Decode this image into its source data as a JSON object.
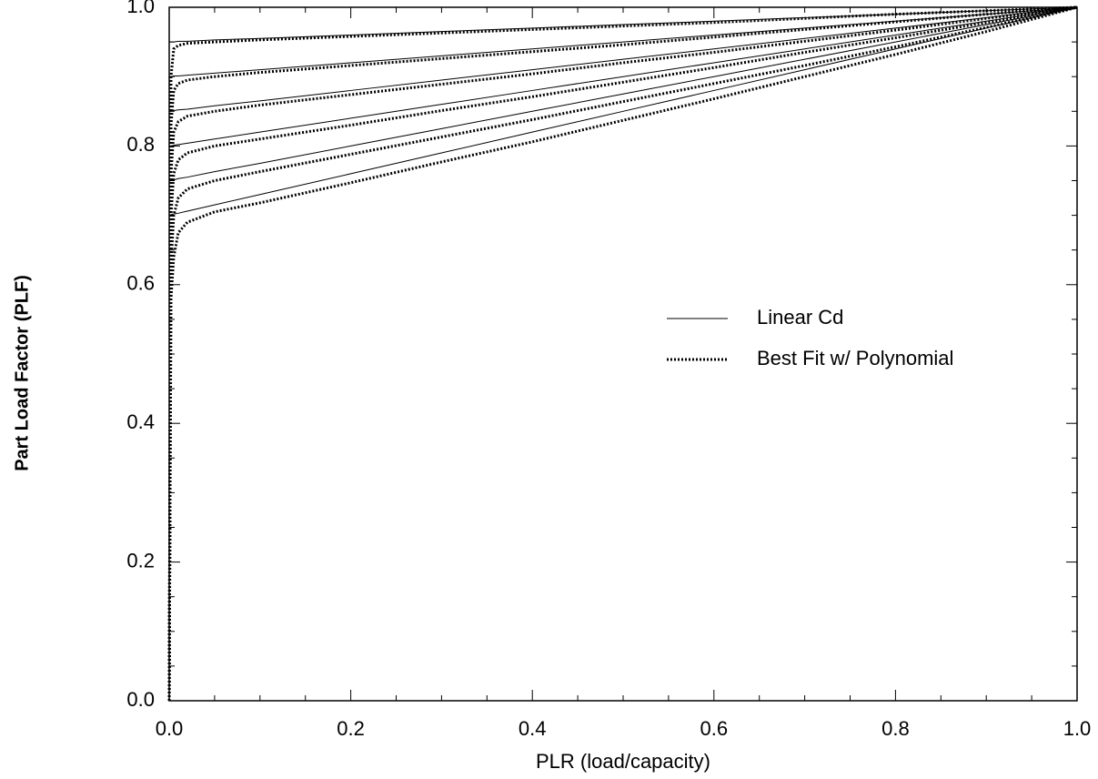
{
  "chart_data": {
    "type": "line",
    "xlabel": "PLR (load/capacity)",
    "ylabel": "Part Load Factor  (PLF)",
    "x": [
      0,
      0.002,
      0.005,
      0.01,
      0.02,
      0.05,
      0.1,
      0.2,
      0.3,
      0.4,
      0.5,
      0.6,
      0.7,
      0.8,
      0.9,
      1.0
    ],
    "xlim": [
      0,
      1.0
    ],
    "ylim": [
      0,
      1.0
    ],
    "xticks": [
      {
        "value": 0,
        "label": "0.0"
      },
      0.2,
      0.4,
      0.6,
      0.8,
      {
        "value": 1.0,
        "label": "1.0"
      }
    ],
    "yticks": [
      {
        "value": 0,
        "label": "0.0"
      },
      0.2,
      0.4,
      0.6,
      0.8,
      {
        "value": 1.0,
        "label": "1.0"
      }
    ],
    "xminorticks": [
      0.05,
      0.1,
      0.15,
      0.25,
      0.3,
      0.35,
      0.45,
      0.5,
      0.55,
      0.65,
      0.7,
      0.75,
      0.85,
      0.9,
      0.95
    ],
    "yminorticks": [
      0.05,
      0.1,
      0.15,
      0.25,
      0.3,
      0.35,
      0.45,
      0.5,
      0.55,
      0.65,
      0.7,
      0.75,
      0.85,
      0.9,
      0.95
    ],
    "grid": false,
    "series": [
      {
        "name": "Linear Cd",
        "color": "#000000",
        "style": "solid",
        "curves": [
          [
            0.95,
            0.95,
            0.95,
            0.951,
            0.951,
            0.953,
            0.955,
            0.96,
            0.965,
            0.97,
            0.975,
            0.98,
            0.985,
            0.99,
            0.995,
            1.0
          ],
          [
            0.9,
            0.9,
            0.901,
            0.901,
            0.902,
            0.905,
            0.91,
            0.92,
            0.93,
            0.94,
            0.95,
            0.96,
            0.97,
            0.98,
            0.99,
            1.0
          ],
          [
            0.85,
            0.85,
            0.851,
            0.852,
            0.853,
            0.858,
            0.865,
            0.88,
            0.895,
            0.91,
            0.925,
            0.94,
            0.955,
            0.97,
            0.985,
            1.0
          ],
          [
            0.8,
            0.8,
            0.801,
            0.802,
            0.804,
            0.81,
            0.82,
            0.84,
            0.86,
            0.88,
            0.9,
            0.92,
            0.94,
            0.96,
            0.98,
            1.0
          ],
          [
            0.75,
            0.751,
            0.751,
            0.753,
            0.755,
            0.763,
            0.775,
            0.8,
            0.825,
            0.85,
            0.875,
            0.9,
            0.925,
            0.95,
            0.975,
            1.0
          ],
          [
            0.7,
            0.701,
            0.702,
            0.703,
            0.706,
            0.715,
            0.73,
            0.76,
            0.79,
            0.82,
            0.85,
            0.88,
            0.91,
            0.94,
            0.97,
            1.0
          ]
        ]
      },
      {
        "name": "Best Fit w/ Polynomial",
        "color": "#000000",
        "style": "dotted",
        "curves": [
          [
            0,
            0.9,
            0.94,
            0.945,
            0.948,
            0.95,
            0.953,
            0.958,
            0.963,
            0.968,
            0.973,
            0.978,
            0.984,
            0.99,
            0.995,
            1.0
          ],
          [
            0,
            0.83,
            0.88,
            0.89,
            0.895,
            0.9,
            0.906,
            0.916,
            0.926,
            0.936,
            0.946,
            0.957,
            0.968,
            0.979,
            0.99,
            1.0
          ],
          [
            0,
            0.76,
            0.82,
            0.835,
            0.843,
            0.85,
            0.859,
            0.874,
            0.889,
            0.904,
            0.92,
            0.935,
            0.951,
            0.967,
            0.984,
            1.0
          ],
          [
            0,
            0.7,
            0.76,
            0.78,
            0.79,
            0.8,
            0.81,
            0.83,
            0.851,
            0.871,
            0.892,
            0.913,
            0.935,
            0.956,
            0.978,
            1.0
          ],
          [
            0,
            0.63,
            0.7,
            0.725,
            0.738,
            0.75,
            0.763,
            0.788,
            0.813,
            0.838,
            0.864,
            0.89,
            0.916,
            0.943,
            0.971,
            1.0
          ],
          [
            0,
            0.58,
            0.64,
            0.675,
            0.69,
            0.705,
            0.718,
            0.747,
            0.777,
            0.806,
            0.837,
            0.868,
            0.9,
            0.932,
            0.965,
            1.0
          ]
        ]
      }
    ]
  }
}
